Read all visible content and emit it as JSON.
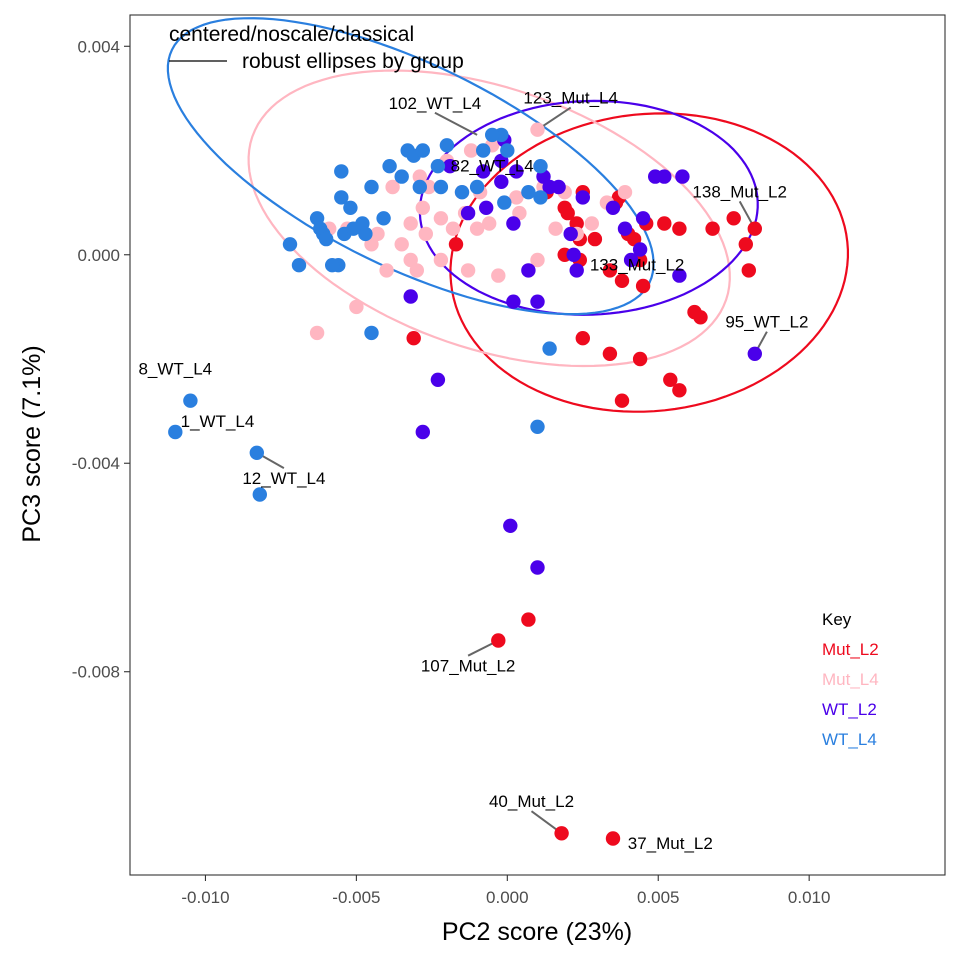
{
  "chart_data": {
    "type": "scatter",
    "subtitle_lines": [
      "centered/noscale/classical",
      "robust ellipses by group"
    ],
    "xlabel": "PC2 score (23%)",
    "ylabel": "PC3 score (7.1%)",
    "xlim": [
      -0.0125,
      0.0145
    ],
    "ylim": [
      -0.0119,
      0.0046
    ],
    "x_ticks": [
      -0.01,
      -0.005,
      0.0,
      0.005,
      0.01
    ],
    "x_tick_labels": [
      "-0.010",
      "-0.005",
      "0.000",
      "0.005",
      "0.010"
    ],
    "y_ticks": [
      0.004,
      0.0,
      -0.004,
      -0.008
    ],
    "y_tick_labels": [
      "0.004",
      "0.000",
      "-0.004",
      "-0.008"
    ],
    "grid": false,
    "legend": {
      "title": "Key",
      "placement": "bottom-right"
    },
    "series": [
      {
        "name": "Mut_L2",
        "color": "#EE0A1E",
        "ellipse": {
          "cx": 0.0047,
          "cy": -0.00015,
          "rx": 0.0066,
          "ry": 0.00285,
          "angle_deg": -6
        },
        "points": [
          [
            0.0013,
            0.0012
          ],
          [
            0.0019,
            0.0009
          ],
          [
            0.002,
            0.0008
          ],
          [
            0.0023,
            0.0006
          ],
          [
            0.0025,
            0.0012
          ],
          [
            0.0019,
            0.0
          ],
          [
            0.0024,
            0.0003
          ],
          [
            0.0024,
            -0.0001
          ],
          [
            0.0029,
            0.0003
          ],
          [
            0.0034,
            -0.0003
          ],
          [
            0.0036,
            0.001
          ],
          [
            0.0037,
            0.0011
          ],
          [
            0.004,
            0.0004
          ],
          [
            0.0042,
            0.0003
          ],
          [
            0.0044,
            -0.0001
          ],
          [
            0.0046,
            0.0006
          ],
          [
            0.0052,
            0.0006
          ],
          [
            0.0057,
            0.0005
          ],
          [
            0.0068,
            0.0005
          ],
          [
            0.0075,
            0.0007
          ],
          [
            0.0079,
            0.0002
          ],
          [
            0.0082,
            0.0005
          ],
          [
            0.008,
            -0.0003
          ],
          [
            0.0038,
            -0.0005
          ],
          [
            0.0045,
            -0.0006
          ],
          [
            0.0064,
            -0.0012
          ],
          [
            0.0062,
            -0.0011
          ],
          [
            0.0025,
            -0.0016
          ],
          [
            0.0034,
            -0.0019
          ],
          [
            0.0044,
            -0.002
          ],
          [
            0.0054,
            -0.0024
          ],
          [
            0.0057,
            -0.0026
          ],
          [
            0.0038,
            -0.0028
          ],
          [
            -0.0031,
            -0.0016
          ],
          [
            -0.0017,
            0.0002
          ],
          [
            0.0007,
            -0.007
          ],
          [
            -0.0003,
            -0.0074
          ],
          [
            0.0018,
            -0.0111
          ],
          [
            0.0035,
            -0.0112
          ]
        ]
      },
      {
        "name": "Mut_L4",
        "color": "#FFB6C1",
        "ellipse": {
          "cx": -0.0006,
          "cy": 0.0007,
          "rx": 0.0083,
          "ry": 0.0025,
          "angle_deg": 19
        },
        "points": [
          [
            0.001,
            0.0024
          ],
          [
            -0.0005,
            0.0021
          ],
          [
            -0.0012,
            0.002
          ],
          [
            -0.002,
            0.0018
          ],
          [
            -0.0029,
            0.0015
          ],
          [
            -0.0038,
            0.0013
          ],
          [
            -0.0026,
            0.0013
          ],
          [
            -0.0015,
            0.0012
          ],
          [
            -0.0009,
            0.0012
          ],
          [
            0.0003,
            0.0011
          ],
          [
            0.0012,
            0.0013
          ],
          [
            0.0019,
            0.0012
          ],
          [
            0.0033,
            0.001
          ],
          [
            0.0039,
            0.0012
          ],
          [
            -0.0032,
            0.0006
          ],
          [
            -0.0028,
            0.0009
          ],
          [
            -0.0022,
            0.0007
          ],
          [
            -0.0014,
            0.0008
          ],
          [
            -0.0006,
            0.0006
          ],
          [
            0.0004,
            0.0008
          ],
          [
            0.0016,
            0.0005
          ],
          [
            -0.0045,
            0.0002
          ],
          [
            -0.0043,
            0.0004
          ],
          [
            -0.0035,
            0.0002
          ],
          [
            -0.0027,
            0.0004
          ],
          [
            -0.0018,
            0.0005
          ],
          [
            -0.001,
            0.0005
          ],
          [
            -0.0032,
            -0.0001
          ],
          [
            -0.0022,
            -0.0001
          ],
          [
            -0.0013,
            -0.0003
          ],
          [
            -0.0003,
            -0.0004
          ],
          [
            0.001,
            -0.0001
          ],
          [
            -0.003,
            -0.0003
          ],
          [
            -0.004,
            -0.0003
          ],
          [
            -0.005,
            -0.001
          ],
          [
            -0.0063,
            -0.0015
          ],
          [
            -0.0053,
            0.0005
          ],
          [
            -0.0059,
            0.0005
          ],
          [
            0.0023,
            0.0004
          ],
          [
            0.0028,
            0.0006
          ]
        ]
      },
      {
        "name": "WT_L2",
        "color": "#4A00EA",
        "ellipse": {
          "cx": 0.0027,
          "cy": 0.0009,
          "rx": 0.0056,
          "ry": 0.00205,
          "angle_deg": -2
        },
        "points": [
          [
            -0.0001,
            0.0022
          ],
          [
            -0.0002,
            0.0018
          ],
          [
            -0.0019,
            0.0017
          ],
          [
            -0.0008,
            0.0016
          ],
          [
            0.0003,
            0.0016
          ],
          [
            0.0012,
            0.0015
          ],
          [
            0.0014,
            0.0013
          ],
          [
            0.0025,
            0.0011
          ],
          [
            0.0049,
            0.0015
          ],
          [
            0.0052,
            0.0015
          ],
          [
            0.0058,
            0.0015
          ],
          [
            -0.0002,
            0.0014
          ],
          [
            -0.0007,
            0.0009
          ],
          [
            -0.0013,
            0.0008
          ],
          [
            0.0017,
            0.0013
          ],
          [
            0.0035,
            0.0009
          ],
          [
            0.0045,
            0.0007
          ],
          [
            0.0002,
            0.0006
          ],
          [
            0.0021,
            0.0004
          ],
          [
            0.0022,
            0.0
          ],
          [
            0.0039,
            0.0005
          ],
          [
            0.0041,
            -0.0001
          ],
          [
            0.0044,
            0.0001
          ],
          [
            0.0057,
            -0.0004
          ],
          [
            0.0007,
            -0.0003
          ],
          [
            0.0002,
            -0.0009
          ],
          [
            -0.0032,
            -0.0008
          ],
          [
            0.0023,
            -0.0003
          ],
          [
            0.0082,
            -0.0019
          ],
          [
            -0.0023,
            -0.0024
          ],
          [
            -0.0028,
            -0.0034
          ],
          [
            0.0001,
            -0.0052
          ],
          [
            0.001,
            -0.006
          ],
          [
            0.001,
            -0.0009
          ]
        ]
      },
      {
        "name": "WT_L4",
        "color": "#2A7FDF",
        "ellipse": {
          "cx": -0.0032,
          "cy": 0.0017,
          "rx": 0.0088,
          "ry": 0.00195,
          "angle_deg": 26
        },
        "points": [
          [
            -0.0002,
            0.0023
          ],
          [
            -0.0005,
            0.0023
          ],
          [
            -0.002,
            0.0021
          ],
          [
            0.0,
            0.002
          ],
          [
            -0.0033,
            0.002
          ],
          [
            -0.0008,
            0.002
          ],
          [
            -0.0031,
            0.0019
          ],
          [
            -0.0039,
            0.0017
          ],
          [
            -0.0023,
            0.0017
          ],
          [
            -0.0055,
            0.0016
          ],
          [
            0.0011,
            0.0017
          ],
          [
            -0.0035,
            0.0015
          ],
          [
            -0.0029,
            0.0013
          ],
          [
            -0.0022,
            0.0013
          ],
          [
            -0.0015,
            0.0012
          ],
          [
            -0.001,
            0.0013
          ],
          [
            0.0007,
            0.0012
          ],
          [
            -0.0045,
            0.0013
          ],
          [
            -0.0055,
            0.0011
          ],
          [
            -0.0052,
            0.0009
          ],
          [
            0.0011,
            0.0011
          ],
          [
            -0.0063,
            0.0007
          ],
          [
            -0.0048,
            0.0006
          ],
          [
            -0.0041,
            0.0007
          ],
          [
            -0.0054,
            0.0004
          ],
          [
            -0.0062,
            0.0005
          ],
          [
            -0.0047,
            0.0004
          ],
          [
            -0.0072,
            0.0002
          ],
          [
            -0.0061,
            0.0004
          ],
          [
            -0.006,
            0.0003
          ],
          [
            -0.0051,
            0.0005
          ],
          [
            -0.0069,
            -0.0002
          ],
          [
            -0.0056,
            -0.0002
          ],
          [
            -0.0058,
            -0.0002
          ],
          [
            -0.0045,
            -0.0015
          ],
          [
            0.0014,
            -0.0018
          ],
          [
            0.001,
            -0.0033
          ],
          [
            -0.0105,
            -0.0028
          ],
          [
            -0.011,
            -0.0034
          ],
          [
            -0.0083,
            -0.0038
          ],
          [
            -0.0082,
            -0.0046
          ],
          [
            -0.0028,
            0.002
          ],
          [
            -0.0001,
            0.001
          ]
        ]
      }
    ],
    "point_labels": [
      {
        "text": "102_WT_L4",
        "lx": -0.0024,
        "ly": 0.0028,
        "px": -0.001,
        "py": 0.0023,
        "leader": true
      },
      {
        "text": "123_Mut_L4",
        "lx": 0.0021,
        "ly": 0.0029,
        "px": 0.001,
        "py": 0.0024,
        "leader": true
      },
      {
        "text": "82_WT_L4",
        "lx": -0.0005,
        "ly": 0.0016,
        "px": -0.0002,
        "py": 0.0015,
        "leader": false
      },
      {
        "text": "138_Mut_L2",
        "lx": 0.0077,
        "ly": 0.0011,
        "px": 0.0082,
        "py": 0.0005,
        "leader": true
      },
      {
        "text": "133_Mut_L2",
        "lx": 0.0043,
        "ly": -0.0003,
        "px": 0.0033,
        "py": -0.0003,
        "leader": false
      },
      {
        "text": "95_WT_L2",
        "lx": 0.0086,
        "ly": -0.0014,
        "px": 0.0082,
        "py": -0.0019,
        "leader": true
      },
      {
        "text": "8_WT_L4",
        "lx": -0.011,
        "ly": -0.0023,
        "px": -0.0105,
        "py": -0.0028,
        "leader": false
      },
      {
        "text": "1_WT_L4",
        "lx": -0.0096,
        "ly": -0.0033,
        "px": -0.011,
        "py": -0.0034,
        "leader": false
      },
      {
        "text": "12_WT_L4",
        "lx": -0.0074,
        "ly": -0.0044,
        "px": -0.0083,
        "py": -0.0038,
        "leader": true
      },
      {
        "text": "107_Mut_L2",
        "lx": -0.0013,
        "ly": -0.008,
        "px": -0.0003,
        "py": -0.0074,
        "leader": true
      },
      {
        "text": "40_Mut_L2",
        "lx": 0.0008,
        "ly": -0.0106,
        "px": 0.0018,
        "py": -0.0111,
        "leader": true
      },
      {
        "text": "37_Mut_L2",
        "lx": 0.0054,
        "ly": -0.0114,
        "px": 0.0035,
        "py": -0.0112,
        "leader": false
      }
    ]
  }
}
